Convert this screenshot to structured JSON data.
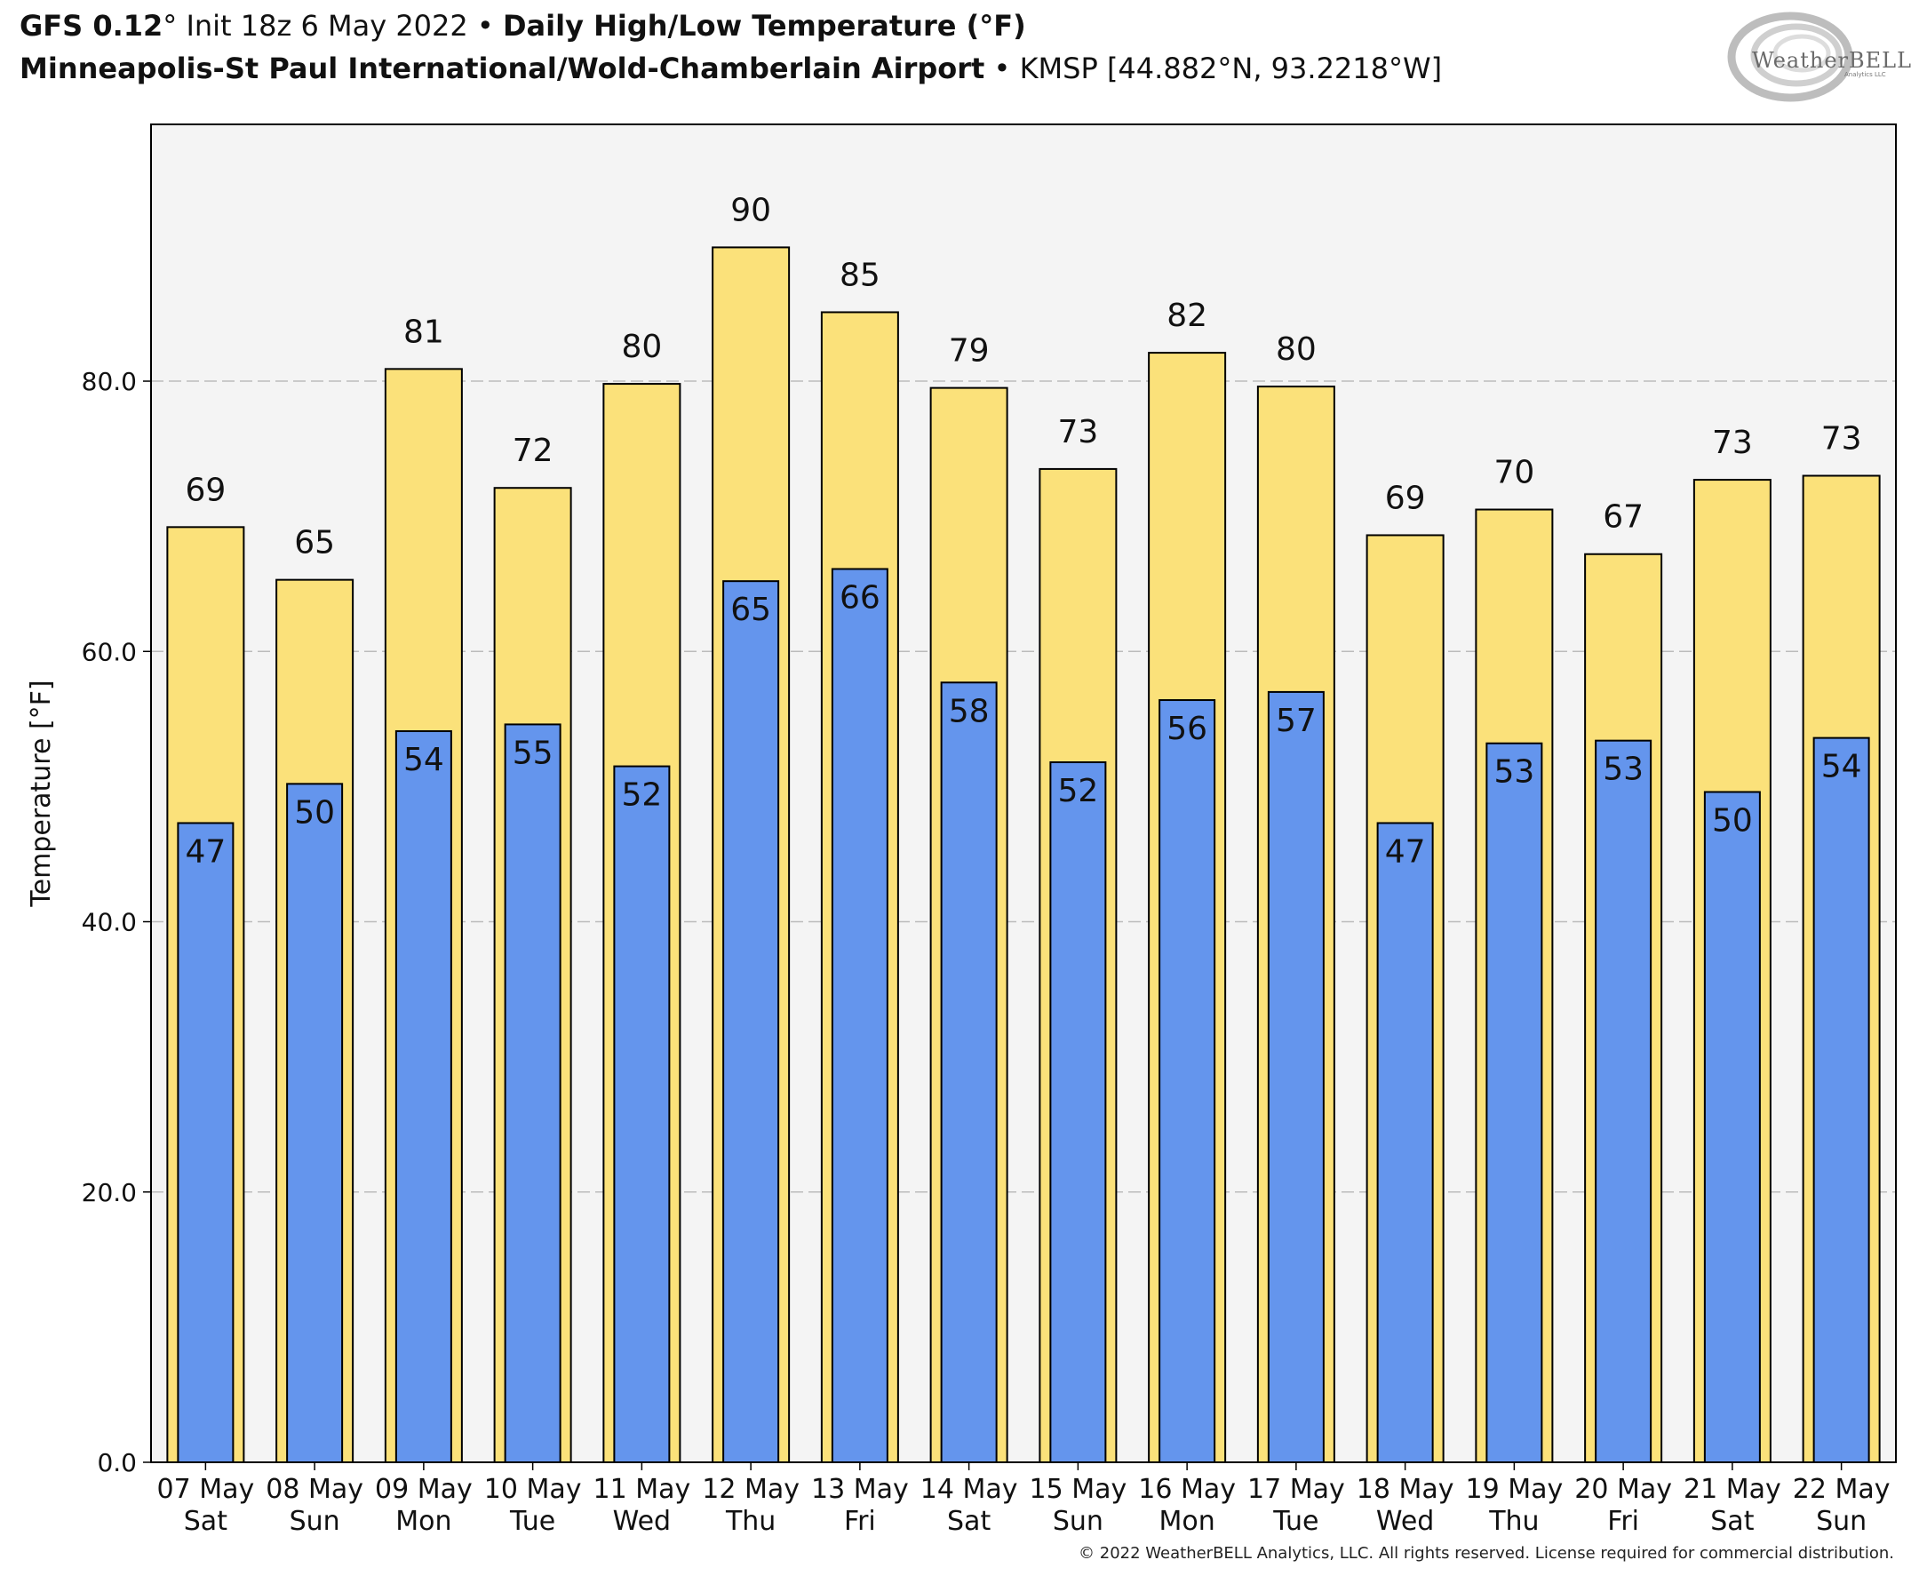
{
  "header": {
    "model": "GFS 0.12",
    "model_degree": "°",
    "init": "Init 18z 6 May 2022",
    "bullet": "•",
    "product": "Daily High/Low Temperature (°F)",
    "station": "Minneapolis-St Paul International/Wold-Chamberlain Airport",
    "station_info": "KMSP [44.882°N, 93.2218°W]"
  },
  "logo": {
    "text": "WeatherBELL",
    "subtext": "Analytics LLC"
  },
  "copyright": "© 2022 WeatherBELL Analytics, LLC. All rights reserved. License required for commercial distribution.",
  "colors": {
    "high": "#FBE17A",
    "low": "#6495ED",
    "plot_background": "#F4F4F4",
    "grid": "#BBBBBB",
    "outline": "#000000"
  },
  "chart_data": {
    "type": "bar",
    "ylabel": "Temperature [°F]",
    "ylim": [
      0,
      99
    ],
    "yticks": [
      "0.0",
      "20.0",
      "40.0",
      "60.0",
      "80.0"
    ],
    "ytick_values": [
      0,
      20,
      40,
      60,
      80
    ],
    "grid": true,
    "categories": [
      "07 May",
      "08 May",
      "09 May",
      "10 May",
      "11 May",
      "12 May",
      "13 May",
      "14 May",
      "15 May",
      "16 May",
      "17 May",
      "18 May",
      "19 May",
      "20 May",
      "21 May",
      "22 May"
    ],
    "weekdays": [
      "Sat",
      "Sun",
      "Mon",
      "Tue",
      "Wed",
      "Thu",
      "Fri",
      "Sat",
      "Sun",
      "Mon",
      "Tue",
      "Wed",
      "Thu",
      "Fri",
      "Sat",
      "Sun"
    ],
    "series": [
      {
        "values": [
          69.2,
          65.3,
          80.9,
          72.1,
          79.8,
          89.9,
          85.1,
          79.5,
          73.5,
          82.1,
          79.6,
          68.6,
          70.5,
          67.2,
          72.7,
          73.0
        ],
        "labels": [
          "69",
          "65",
          "81",
          "72",
          "80",
          "90",
          "85",
          "79",
          "73",
          "82",
          "80",
          "69",
          "70",
          "67",
          "73",
          "73"
        ]
      },
      {
        "values": [
          47.3,
          50.2,
          54.1,
          54.6,
          51.5,
          65.2,
          66.1,
          57.7,
          51.8,
          56.4,
          57.0,
          47.3,
          53.2,
          53.4,
          49.6,
          53.6
        ],
        "labels": [
          "47",
          "50",
          "54",
          "55",
          "52",
          "65",
          "66",
          "58",
          "52",
          "56",
          "57",
          "47",
          "53",
          "53",
          "50",
          "54"
        ]
      }
    ]
  }
}
